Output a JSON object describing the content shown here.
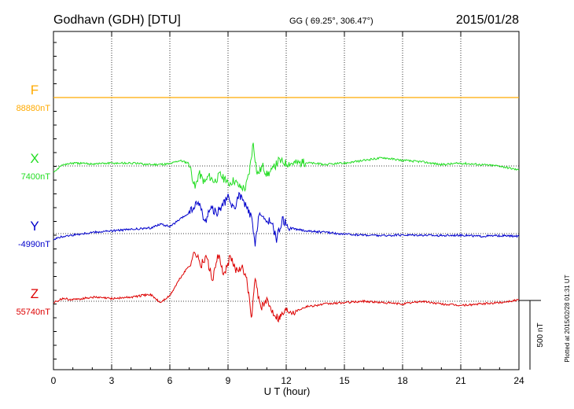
{
  "header": {
    "station": "Godhavn (GDH)  [DTU]",
    "coords": "GG ( 69.25°, 306.47°)",
    "date": "2015/01/28"
  },
  "side_note": "Plotted at 2015/02/28 01:31  UT",
  "scale_label": "500 nT",
  "colors": {
    "F": "#ffaa00",
    "X": "#22dd22",
    "Y": "#0000cc",
    "Z": "#dd0000"
  },
  "chart_data": {
    "type": "line",
    "title": "Godhavn (GDH)  [DTU]",
    "xlabel": "U T (hour)",
    "xlim": [
      0,
      24
    ],
    "x_ticks": [
      0,
      3,
      6,
      9,
      12,
      15,
      18,
      21,
      24
    ],
    "y_scale_bar_nT": 500,
    "series": [
      {
        "name": "F",
        "baseline_label": "88880nT",
        "x": [
          0,
          24
        ],
        "values": [
          0,
          0
        ]
      },
      {
        "name": "X",
        "baseline_label": "7400nT",
        "x": [
          0,
          0.5,
          1,
          2,
          3,
          4,
          5,
          6,
          6.5,
          7,
          7.3,
          7.5,
          7.8,
          8,
          8.3,
          8.6,
          9,
          9.3,
          9.6,
          9.9,
          10.1,
          10.3,
          10.5,
          10.8,
          11,
          11.3,
          11.6,
          12,
          13,
          14,
          15,
          16,
          17,
          18,
          19,
          20,
          21,
          22,
          23,
          24
        ],
        "values": [
          -40,
          10,
          20,
          15,
          20,
          20,
          10,
          15,
          40,
          20,
          -160,
          -50,
          -120,
          -70,
          -110,
          -60,
          -130,
          -100,
          -150,
          -160,
          -40,
          170,
          -60,
          0,
          -60,
          -30,
          40,
          20,
          25,
          10,
          20,
          40,
          60,
          40,
          30,
          10,
          20,
          10,
          0,
          -30
        ]
      },
      {
        "name": "Y",
        "baseline_label": "-4990nT",
        "x": [
          0,
          0.5,
          1,
          2,
          3,
          4,
          5,
          5.5,
          6,
          6.5,
          7,
          7.5,
          7.8,
          8.1,
          8.4,
          8.7,
          9,
          9.3,
          9.6,
          9.9,
          10.2,
          10.4,
          10.6,
          10.9,
          11.2,
          11.5,
          11.8,
          12.2,
          13,
          14,
          15,
          16,
          17,
          18,
          19,
          20,
          21,
          22,
          23,
          24
        ],
        "values": [
          -40,
          -20,
          -10,
          10,
          20,
          30,
          40,
          70,
          50,
          100,
          150,
          230,
          80,
          190,
          150,
          200,
          260,
          180,
          280,
          200,
          120,
          -90,
          160,
          80,
          100,
          -40,
          100,
          40,
          20,
          10,
          -5,
          -10,
          -15,
          -10,
          -10,
          -15,
          -10,
          -20,
          -15,
          -20
        ]
      },
      {
        "name": "Z",
        "baseline_label": "55740nT",
        "x": [
          0,
          0.5,
          1,
          2,
          3,
          4,
          5,
          5.5,
          6,
          6.5,
          7,
          7.3,
          7.6,
          7.9,
          8.2,
          8.5,
          8.8,
          9.1,
          9.4,
          9.7,
          10,
          10.2,
          10.4,
          10.7,
          11,
          11.3,
          11.6,
          12,
          12.5,
          13,
          14,
          15,
          16,
          17,
          18,
          19,
          20,
          21,
          22,
          23,
          24
        ],
        "values": [
          -10,
          20,
          10,
          30,
          20,
          30,
          50,
          -10,
          40,
          160,
          260,
          360,
          260,
          320,
          150,
          330,
          180,
          320,
          230,
          250,
          130,
          -130,
          150,
          -50,
          0,
          -70,
          -120,
          -60,
          -70,
          -40,
          -20,
          -10,
          0,
          -10,
          -20,
          0,
          -20,
          -30,
          -20,
          -10,
          10
        ]
      }
    ]
  }
}
